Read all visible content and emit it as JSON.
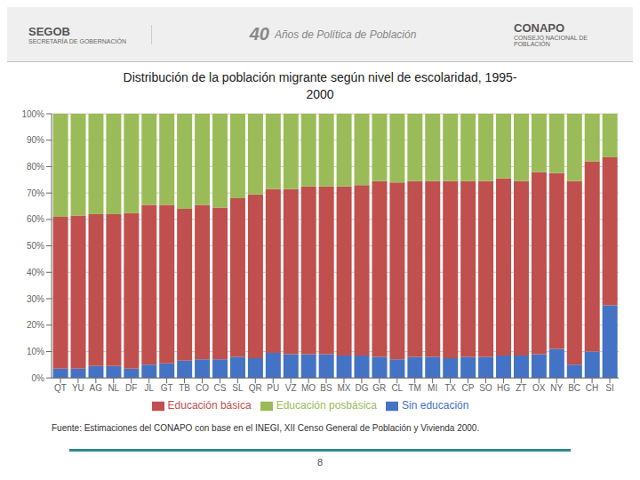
{
  "chart_data": {
    "type": "bar",
    "title": "Distribución de la población migrante según nivel de escolaridad, 1995-\n2000",
    "categories": [
      "QT",
      "YU",
      "AG",
      "NL",
      "DF",
      "JL",
      "GT",
      "TB",
      "CO",
      "CS",
      "SL",
      "QR",
      "PU",
      "VZ",
      "MO",
      "BS",
      "MX",
      "DG",
      "GR",
      "CL",
      "TM",
      "MI",
      "TX",
      "CP",
      "SO",
      "HG",
      "ZT",
      "OX",
      "NY",
      "BC",
      "CH",
      "SI"
    ],
    "series": [
      {
        "name": "Sin educación",
        "color": "#4472C4",
        "values": [
          3.5,
          3.5,
          4.5,
          4.5,
          3.5,
          5.0,
          5.5,
          6.5,
          7.0,
          7.0,
          8.0,
          7.5,
          9.5,
          9.0,
          9.0,
          9.0,
          8.5,
          8.5,
          8.0,
          7.0,
          8.0,
          8.0,
          7.5,
          8.0,
          8.0,
          8.5,
          8.5,
          9.0,
          11.0,
          5.0,
          10.0,
          27.5
        ]
      },
      {
        "name": "Educación básica",
        "color": "#C0504D",
        "values": [
          57.5,
          58.0,
          57.5,
          57.5,
          59.0,
          60.5,
          60.0,
          57.5,
          58.5,
          57.5,
          60.0,
          62.0,
          62.0,
          62.5,
          63.5,
          63.5,
          64.0,
          64.5,
          66.5,
          67.0,
          66.5,
          66.5,
          67.0,
          66.5,
          66.5,
          67.0,
          66.0,
          69.0,
          66.5,
          69.5,
          72.0,
          56.0
        ]
      },
      {
        "name": "Educación posbásica",
        "color": "#9BBB59",
        "values": [
          39.0,
          38.5,
          38.0,
          38.0,
          37.5,
          34.5,
          34.5,
          36.0,
          34.5,
          35.5,
          32.0,
          30.5,
          28.5,
          28.5,
          27.5,
          27.5,
          27.5,
          27.0,
          25.5,
          26.0,
          25.5,
          25.5,
          25.5,
          25.5,
          25.5,
          24.5,
          25.5,
          22.0,
          22.5,
          25.5,
          18.0,
          16.5
        ]
      }
    ],
    "ylim": [
      0,
      100
    ],
    "yticks": [
      {
        "value": 0,
        "label": "0%"
      },
      {
        "value": 10,
        "label": "10%"
      },
      {
        "value": 20,
        "label": "20%"
      },
      {
        "value": 30,
        "label": "30%"
      },
      {
        "value": 40,
        "label": "40%"
      },
      {
        "value": 50,
        "label": "50%"
      },
      {
        "value": 60,
        "label": "60%"
      },
      {
        "value": 70,
        "label": "70%"
      },
      {
        "value": 80,
        "label": "80%"
      },
      {
        "value": 90,
        "label": "90%"
      },
      {
        "value": 100,
        "label": "100%"
      }
    ],
    "stacked": true,
    "grid": true,
    "legend": "bottom",
    "annotations": [
      "SEGOB",
      "SECRETARÍA DE GOBERNACIÓN",
      "40",
      "Años de Política de Población",
      "CONAPO",
      "CONSEJO NACIONAL DE\nPOBLACIÓN",
      "Fuente: Estimaciones del CONAPO con base en el  INEGI, XII Censo General de Población y Vivienda 2000.",
      "8"
    ]
  }
}
